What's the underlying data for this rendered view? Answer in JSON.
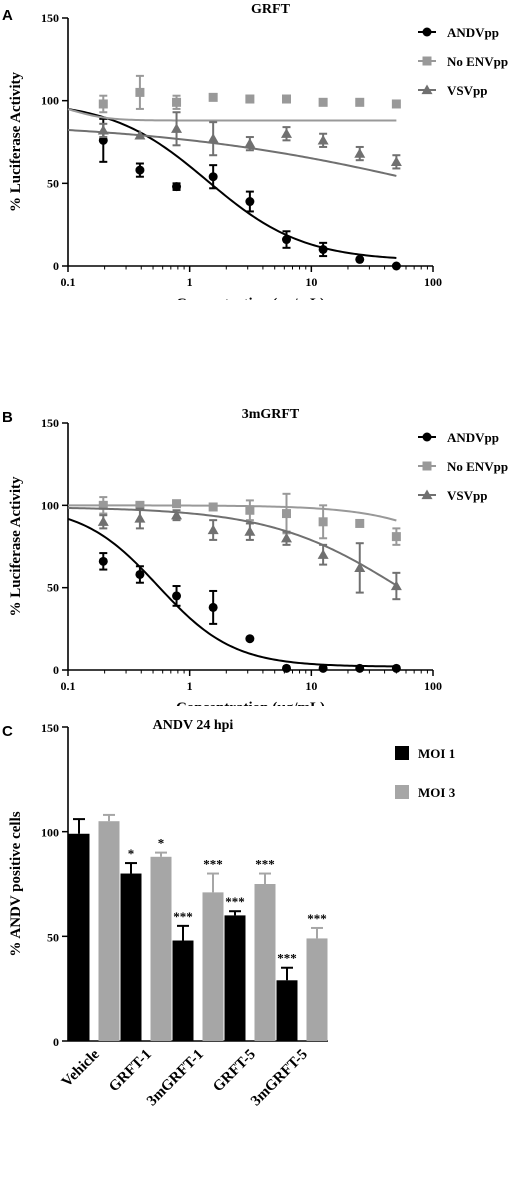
{
  "chart_data": [
    {
      "type": "line",
      "panel": "A",
      "title": "GRFT",
      "xlabel": "Concentration (µg/mL)",
      "ylabel": "% Luciferase Activity",
      "xscale": "log",
      "xlim": [
        0.1,
        100
      ],
      "ylim": [
        0,
        150
      ],
      "xticks": [
        "0.1",
        "1",
        "10",
        "100"
      ],
      "yticks": [
        "0",
        "50",
        "100",
        "150"
      ],
      "legend_position": "right",
      "series": [
        {
          "name": "ANDVpp",
          "marker": "circle",
          "color": "#000000",
          "x": [
            0.195,
            0.39,
            0.78,
            1.56,
            3.125,
            6.25,
            12.5,
            25,
            50
          ],
          "y": [
            76,
            58,
            48,
            54,
            39,
            16,
            10,
            4,
            0
          ],
          "err": [
            13,
            4,
            2,
            7,
            6,
            5,
            4,
            0,
            0
          ],
          "fit": {
            "top": 100,
            "bottom": 3,
            "ic50": 1.4,
            "hill": 1.1
          }
        },
        {
          "name": "No ENVpp",
          "marker": "square",
          "color": "#999999",
          "x": [
            0.195,
            0.39,
            0.78,
            1.56,
            3.125,
            6.25,
            12.5,
            25,
            50
          ],
          "y": [
            98,
            105,
            99,
            102,
            101,
            101,
            99,
            99,
            98
          ],
          "err": [
            5,
            10,
            4,
            1,
            0,
            0,
            0,
            0,
            0
          ],
          "fit": {
            "top": 100,
            "bottom": 88,
            "ic50": 0.11,
            "hill": 3
          }
        },
        {
          "name": "VSVpp",
          "marker": "triangle",
          "color": "#707070",
          "x": [
            0.195,
            0.39,
            0.78,
            1.56,
            3.125,
            6.25,
            12.5,
            25,
            50
          ],
          "y": [
            82,
            79,
            83,
            77,
            74,
            80,
            76,
            68,
            63
          ],
          "err": [
            4,
            0,
            10,
            10,
            4,
            4,
            4,
            4,
            4
          ],
          "fit": {
            "top": 88,
            "bottom": 0,
            "ic50": 200,
            "hill": 0.35
          }
        }
      ]
    },
    {
      "type": "line",
      "panel": "B",
      "title": "3mGRFT",
      "xlabel": "Concentration (µg/mL)",
      "ylabel": "% Luciferase Activity",
      "xscale": "log",
      "xlim": [
        0.1,
        100
      ],
      "ylim": [
        0,
        150
      ],
      "xticks": [
        "0.1",
        "1",
        "10",
        "100"
      ],
      "yticks": [
        "0",
        "50",
        "100",
        "150"
      ],
      "legend_position": "right",
      "series": [
        {
          "name": "ANDVpp",
          "marker": "circle",
          "color": "#000000",
          "x": [
            0.195,
            0.39,
            0.78,
            1.56,
            3.125,
            6.25,
            12.5,
            25,
            50
          ],
          "y": [
            66,
            58,
            45,
            38,
            19,
            1,
            1,
            1,
            1
          ],
          "err": [
            5,
            5,
            6,
            10,
            0,
            0,
            0,
            0,
            0
          ],
          "fit": {
            "top": 100,
            "bottom": 2,
            "ic50": 0.55,
            "hill": 1.4
          }
        },
        {
          "name": "No ENVpp",
          "marker": "square",
          "color": "#999999",
          "x": [
            0.195,
            0.39,
            0.78,
            1.56,
            3.125,
            6.25,
            12.5,
            25,
            50
          ],
          "y": [
            100,
            100,
            101,
            99,
            97,
            95,
            90,
            89,
            81
          ],
          "err": [
            5,
            1,
            0,
            0,
            6,
            12,
            10,
            0,
            5
          ],
          "fit": {
            "top": 100,
            "bottom": 0,
            "ic50": 400,
            "hill": 1.1
          }
        },
        {
          "name": "VSVpp",
          "marker": "triangle",
          "color": "#707070",
          "x": [
            0.195,
            0.39,
            0.78,
            1.56,
            3.125,
            6.25,
            12.5,
            25,
            50
          ],
          "y": [
            90,
            92,
            94,
            85,
            84,
            80,
            70,
            62,
            51
          ],
          "err": [
            4,
            6,
            3,
            6,
            5,
            4,
            6,
            15,
            8
          ],
          "fit": {
            "top": 99,
            "bottom": 0,
            "ic50": 55,
            "hill": 0.8
          }
        }
      ]
    },
    {
      "type": "bar",
      "panel": "C",
      "title": "ANDV 24 hpi",
      "xlabel": "",
      "ylabel": "% ANDV positive cells",
      "ylim": [
        0,
        150
      ],
      "yticks": [
        "0",
        "50",
        "100",
        "150"
      ],
      "legend_position": "top-right",
      "categories": [
        "Vehicle",
        "GRFT-1",
        "3mGRFT-1",
        "GRFT-5",
        "3mGRFT-5"
      ],
      "series": [
        {
          "name": "MOI 1",
          "color": "#000000",
          "values": [
            99,
            80,
            48,
            60,
            29
          ],
          "err": [
            7,
            5,
            7,
            2,
            6
          ],
          "annotations": [
            "",
            "*",
            "***",
            "***",
            "***"
          ]
        },
        {
          "name": "MOI 3",
          "color": "#a6a6a6",
          "values": [
            105,
            88,
            71,
            75,
            49
          ],
          "err": [
            3,
            2,
            9,
            5,
            5
          ],
          "annotations": [
            "",
            "*",
            "***",
            "***",
            "***"
          ]
        }
      ]
    }
  ]
}
